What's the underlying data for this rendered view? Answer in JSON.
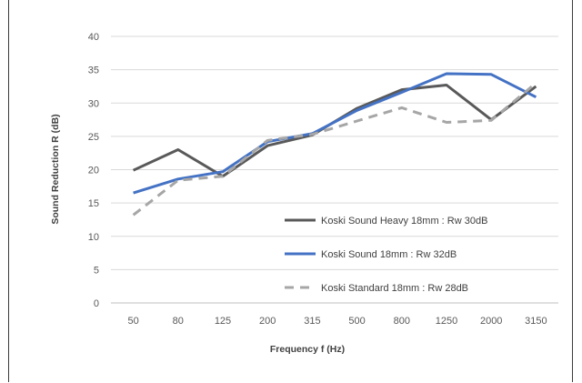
{
  "chart_data": {
    "type": "line",
    "title": "",
    "xlabel": "Frequency f (Hz)",
    "ylabel": "Sound Reduction R (dB)",
    "categories": [
      "50",
      "80",
      "125",
      "200",
      "315",
      "500",
      "800",
      "1250",
      "2000",
      "3150"
    ],
    "ylim": [
      0,
      40
    ],
    "yticks": [
      "0",
      "5",
      "10",
      "15",
      "20",
      "25",
      "30",
      "35",
      "40"
    ],
    "grid": true,
    "legend_position": "lower-right",
    "series": [
      {
        "name": "Koski Sound Heavy 18mm : Rw 30dB",
        "color": "#595959",
        "dash": "solid",
        "values": [
          19.9,
          23.0,
          19.0,
          23.6,
          25.2,
          29.2,
          32.0,
          32.7,
          27.5,
          32.5
        ]
      },
      {
        "name": "Koski Sound 18mm : Rw 32dB",
        "color": "#4472c4",
        "dash": "solid",
        "values": [
          16.5,
          18.6,
          19.7,
          24.2,
          25.4,
          28.9,
          31.6,
          34.4,
          34.3,
          30.9
        ]
      },
      {
        "name": "Koski Standard 18mm : Rw 28dB",
        "color": "#a6a6a6",
        "dash": "dashed",
        "values": [
          13.2,
          18.4,
          19.0,
          24.4,
          25.3,
          27.3,
          29.3,
          27.1,
          27.4,
          33.0
        ]
      }
    ]
  }
}
